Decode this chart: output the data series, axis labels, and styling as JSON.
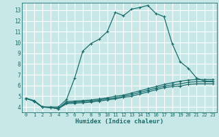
{
  "xlabel": "Humidex (Indice chaleur)",
  "bg_color": "#c8e8e8",
  "grid_color": "#ffffff",
  "line_color": "#1a6b6b",
  "xlim": [
    -0.5,
    23.5
  ],
  "ylim": [
    3.5,
    13.7
  ],
  "xticks": [
    0,
    1,
    2,
    3,
    4,
    5,
    6,
    7,
    8,
    9,
    10,
    11,
    12,
    13,
    14,
    15,
    16,
    17,
    18,
    19,
    20,
    21,
    22,
    23
  ],
  "yticks": [
    4,
    5,
    6,
    7,
    8,
    9,
    10,
    11,
    12,
    13
  ],
  "lines": [
    {
      "x": [
        0,
        1,
        2,
        3,
        4,
        5,
        6,
        7,
        8,
        9,
        10,
        11,
        12,
        13,
        14,
        15,
        16,
        17,
        18,
        19,
        20,
        21,
        22,
        23
      ],
      "y": [
        4.8,
        4.6,
        4.0,
        4.0,
        4.0,
        4.7,
        6.7,
        9.2,
        9.9,
        10.3,
        11.0,
        12.8,
        12.5,
        13.1,
        13.25,
        13.45,
        12.7,
        12.4,
        9.9,
        8.2,
        7.6,
        6.7,
        6.4,
        6.4
      ],
      "marker": "+"
    },
    {
      "x": [
        0,
        1,
        2,
        3,
        4,
        5,
        6,
        7,
        8,
        9,
        10,
        11,
        12,
        13,
        14,
        15,
        16,
        17,
        18,
        19,
        20,
        21,
        22,
        23
      ],
      "y": [
        4.8,
        4.55,
        4.0,
        3.95,
        3.85,
        4.5,
        4.55,
        4.6,
        4.65,
        4.75,
        4.85,
        5.0,
        5.1,
        5.3,
        5.5,
        5.7,
        5.9,
        6.1,
        6.25,
        6.4,
        6.5,
        6.55,
        6.55,
        6.55
      ],
      "marker": "+"
    },
    {
      "x": [
        0,
        1,
        2,
        3,
        4,
        5,
        6,
        7,
        8,
        9,
        10,
        11,
        12,
        13,
        14,
        15,
        16,
        17,
        18,
        19,
        20,
        21,
        22,
        23
      ],
      "y": [
        4.8,
        4.55,
        4.0,
        3.95,
        3.85,
        4.4,
        4.45,
        4.5,
        4.55,
        4.65,
        4.75,
        4.85,
        5.0,
        5.15,
        5.35,
        5.55,
        5.75,
        5.95,
        6.05,
        6.15,
        6.3,
        6.35,
        6.35,
        6.35
      ],
      "marker": "+"
    },
    {
      "x": [
        0,
        1,
        2,
        3,
        4,
        5,
        6,
        7,
        8,
        9,
        10,
        11,
        12,
        13,
        14,
        15,
        16,
        17,
        18,
        19,
        20,
        21,
        22,
        23
      ],
      "y": [
        4.8,
        4.55,
        4.0,
        3.95,
        3.85,
        4.3,
        4.35,
        4.4,
        4.45,
        4.55,
        4.65,
        4.75,
        4.9,
        5.0,
        5.2,
        5.4,
        5.6,
        5.8,
        5.9,
        5.95,
        6.1,
        6.15,
        6.15,
        6.15
      ],
      "marker": "+"
    }
  ]
}
